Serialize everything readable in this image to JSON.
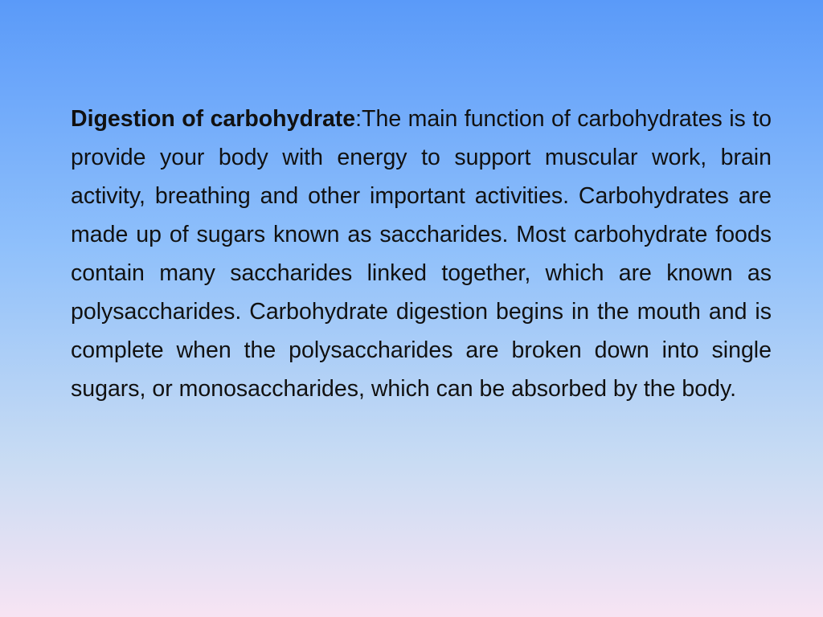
{
  "heading": "Digestion of carbohydrate",
  "body": ":The main function of carbohydrates is to provide your body with energy to support muscular work, brain activity, breathing and other important activities. Carbohydrates are made up of sugars known as saccharides. Most carbohydrate foods contain many saccharides linked together, which are known as polysaccharides. Carbohydrate digestion begins in the mouth and is complete when the polysaccharides are broken down into single sugars, or monosaccharides, which can be absorbed by the body."
}
